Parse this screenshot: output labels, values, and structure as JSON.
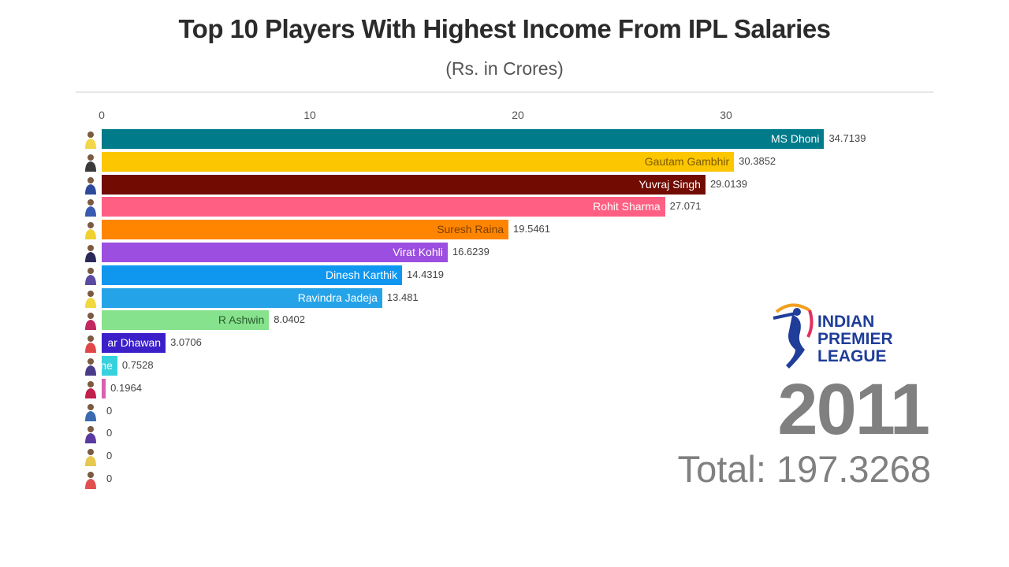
{
  "header": {
    "title": "Top 10 Players With Highest Income From IPL Salaries",
    "subtitle": "(Rs. in Crores)"
  },
  "axis": {
    "ticks": [
      "0",
      "10",
      "20",
      "30"
    ]
  },
  "colors": {
    "background": "#ffffff",
    "year_text": "#808080",
    "logo_blue": "#1f3d99"
  },
  "overlay": {
    "logo_lines": [
      "INDIAN",
      "PREMIER",
      "LEAGUE"
    ],
    "year": "2011",
    "total_label": "Total: 197.3268"
  },
  "chart_data": {
    "type": "bar",
    "orientation": "horizontal",
    "title": "Top 10 Players With Highest Income From IPL Salaries",
    "subtitle": "(Rs. in Crores)",
    "xlabel": "",
    "ylabel": "",
    "xlim": [
      0,
      35
    ],
    "x_ticks": [
      0,
      10,
      20,
      30
    ],
    "grid": false,
    "legend": "none",
    "year": "2011",
    "total": 197.3268,
    "categories": [
      "MS Dhoni",
      "Gautam Gambhir",
      "Yuvraj Singh",
      "Rohit Sharma",
      "Suresh Raina",
      "Virat Kohli",
      "Dinesh Karthik",
      "Ravindra Jadeja",
      "R Ashwin",
      "Shikhar Dhawan",
      "(partially hidden)",
      "(hidden)",
      "(hidden)",
      "(hidden)",
      "(hidden)",
      "(hidden)"
    ],
    "values": [
      34.7139,
      30.3852,
      29.0139,
      27.071,
      19.5461,
      16.6239,
      14.4319,
      13.481,
      8.0402,
      3.0706,
      0.7528,
      0.1964,
      0,
      0,
      0,
      0
    ],
    "bars": [
      {
        "label": "MS Dhoni",
        "value": "34.7139",
        "num": 34.7139,
        "color": "#007b8a"
      },
      {
        "label": "Gautam Gambhir",
        "value": "30.3852",
        "num": 30.3852,
        "color": "#fcc600",
        "label_color": "#7a5a00"
      },
      {
        "label": "Yuvraj Singh",
        "value": "29.0139",
        "num": 29.0139,
        "color": "#720b02"
      },
      {
        "label": "Rohit Sharma",
        "value": "27.071",
        "num": 27.071,
        "color": "#ff5f82"
      },
      {
        "label": "Suresh Raina",
        "value": "19.5461",
        "num": 19.5461,
        "color": "#ff8500",
        "label_color": "#7a3e00"
      },
      {
        "label": "Virat Kohli",
        "value": "16.6239",
        "num": 16.6239,
        "color": "#9c4ee0"
      },
      {
        "label": "Dinesh Karthik",
        "value": "14.4319",
        "num": 14.4319,
        "color": "#0f97f0"
      },
      {
        "label": "Ravindra Jadeja",
        "value": "13.481",
        "num": 13.481,
        "color": "#25a3e8"
      },
      {
        "label": "R Ashwin",
        "value": "8.0402",
        "num": 8.0402,
        "color": "#86e28c",
        "label_color": "#2a5a2e"
      },
      {
        "label": "ar Dhawan",
        "value": "3.0706",
        "num": 3.0706,
        "color": "#3b1fc9"
      },
      {
        "label": "ne",
        "value": "0.7528",
        "num": 0.7528,
        "color": "#36d1dd"
      },
      {
        "label": "",
        "value": "0.1964",
        "num": 0.1964,
        "color": "#d95fb0"
      },
      {
        "label": "",
        "value": "0",
        "num": 0,
        "color": "#cccccc"
      },
      {
        "label": "",
        "value": "0",
        "num": 0,
        "color": "#cccccc"
      },
      {
        "label": "",
        "value": "0",
        "num": 0,
        "color": "#cccccc"
      },
      {
        "label": "",
        "value": "0",
        "num": 0,
        "color": "#cccccc"
      }
    ],
    "avatar_colors": [
      "#f2d64b",
      "#3a3a3a",
      "#2d4a9a",
      "#3a5ab0",
      "#f0d030",
      "#2a2a5a",
      "#5a4aa0",
      "#f0d840",
      "#c02860",
      "#e04848",
      "#4a3a8a",
      "#c0204a",
      "#3a6ab0",
      "#5a3aa0",
      "#e8c850",
      "#e05050"
    ]
  }
}
